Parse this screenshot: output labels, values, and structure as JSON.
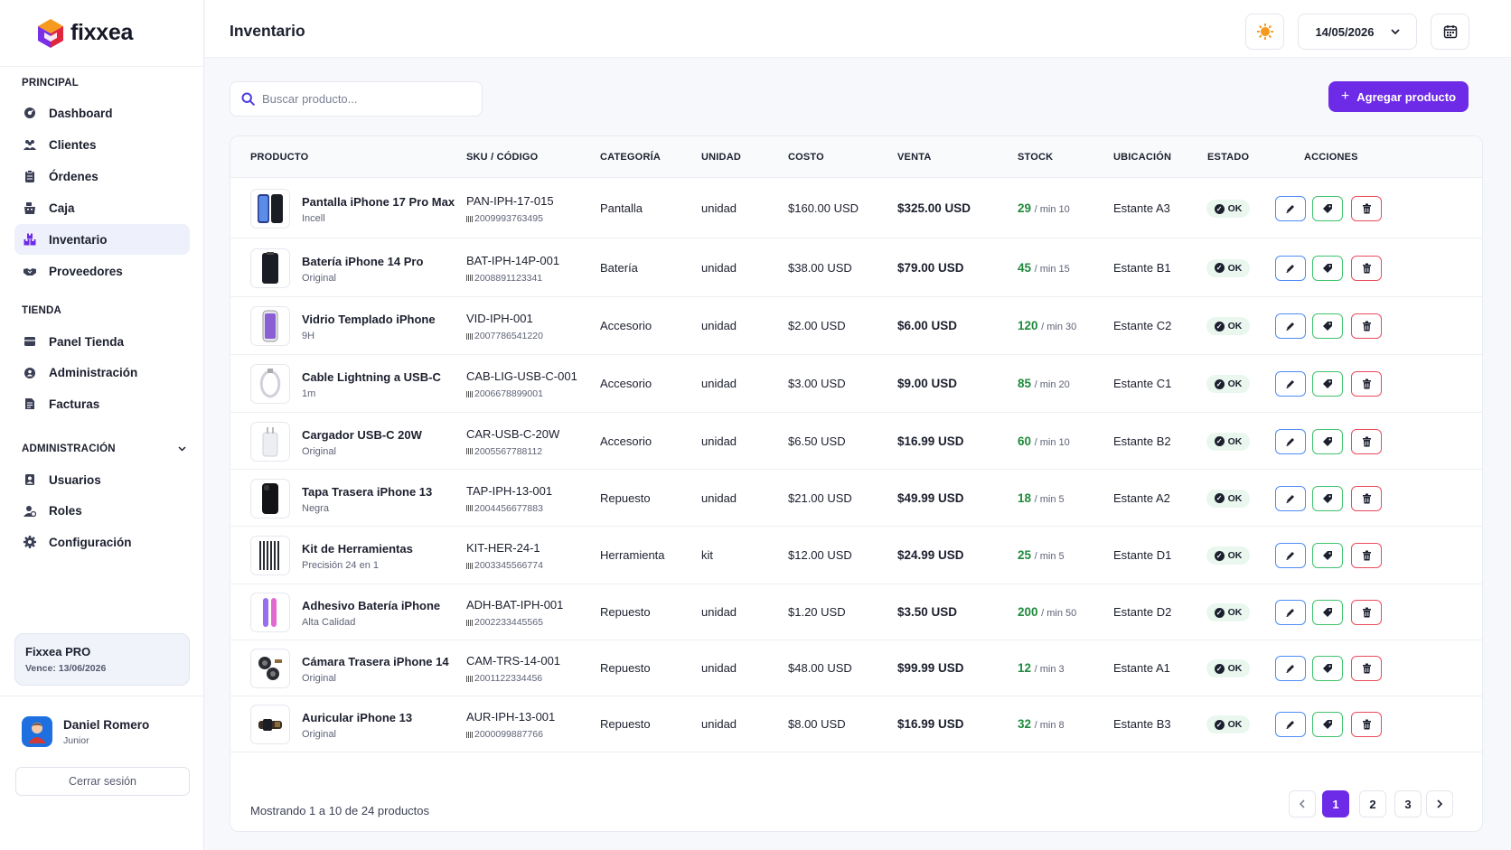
{
  "app": {
    "name": "fixxea"
  },
  "sidebar": {
    "sections": [
      {
        "title": "PRINCIPAL",
        "items": [
          {
            "label": "Dashboard",
            "icon": "dashboard-icon"
          },
          {
            "label": "Clientes",
            "icon": "users-icon"
          },
          {
            "label": "Órdenes",
            "icon": "clipboard-icon"
          },
          {
            "label": "Caja",
            "icon": "cash-register-icon"
          },
          {
            "label": "Inventario",
            "icon": "inventory-icon",
            "active": true
          },
          {
            "label": "Proveedores",
            "icon": "handshake-icon"
          }
        ]
      },
      {
        "title": "TIENDA",
        "items": [
          {
            "label": "Panel Tienda",
            "icon": "store-panel-icon"
          },
          {
            "label": "Administración",
            "icon": "admin-icon"
          },
          {
            "label": "Facturas",
            "icon": "invoice-icon"
          }
        ]
      },
      {
        "title": "ADMINISTRACIÓN",
        "collapsible": true,
        "items": [
          {
            "label": "Usuarios",
            "icon": "user-icon"
          },
          {
            "label": "Roles",
            "icon": "roles-icon"
          },
          {
            "label": "Configuración",
            "icon": "gear-icon"
          }
        ]
      }
    ],
    "plan": {
      "title": "Fixxea PRO",
      "expires": "Vence: 13/06/2026"
    },
    "user": {
      "name": "Daniel Romero",
      "role": "Junior"
    },
    "logout_label": "Cerrar sesión"
  },
  "header": {
    "title": "Inventario",
    "date": "14/05/2026"
  },
  "toolbar": {
    "search_placeholder": "Buscar producto...",
    "add_label": "Agregar producto"
  },
  "table": {
    "columns": [
      "PRODUCTO",
      "SKU / CÓDIGO",
      "CATEGORÍA",
      "UNIDAD",
      "COSTO",
      "VENTA",
      "STOCK",
      "UBICACIÓN",
      "ESTADO",
      "ACCIONES"
    ],
    "rows": [
      {
        "name": "Pantalla iPhone 17 Pro Max",
        "sub": "Incell",
        "sku": "PAN-IPH-17-015",
        "code": "2009993763495",
        "category": "Pantalla",
        "unit": "unidad",
        "cost": "$160.00 USD",
        "price": "$325.00 USD",
        "stock": "29",
        "min": "/ min 10",
        "location": "Estante A3",
        "status": "OK",
        "thumb": "screen"
      },
      {
        "name": "Batería iPhone 14 Pro",
        "sub": "Original",
        "sku": "BAT-IPH-14P-001",
        "code": "2008891123341",
        "category": "Batería",
        "unit": "unidad",
        "cost": "$38.00 USD",
        "price": "$79.00 USD",
        "stock": "45",
        "min": "/ min 15",
        "location": "Estante B1",
        "status": "OK",
        "thumb": "battery"
      },
      {
        "name": "Vidrio Templado iPhone",
        "sub": "9H",
        "sku": "VID-IPH-001",
        "code": "2007786541220",
        "category": "Accesorio",
        "unit": "unidad",
        "cost": "$2.00 USD",
        "price": "$6.00 USD",
        "stock": "120",
        "min": "/ min 30",
        "location": "Estante C2",
        "status": "OK",
        "thumb": "glass"
      },
      {
        "name": "Cable Lightning a USB-C",
        "sub": "1m",
        "sku": "CAB-LIG-USB-C-001",
        "code": "2006678899001",
        "category": "Accesorio",
        "unit": "unidad",
        "cost": "$3.00 USD",
        "price": "$9.00 USD",
        "stock": "85",
        "min": "/ min 20",
        "location": "Estante C1",
        "status": "OK",
        "thumb": "cable"
      },
      {
        "name": "Cargador USB-C 20W",
        "sub": "Original",
        "sku": "CAR-USB-C-20W",
        "code": "2005567788112",
        "category": "Accesorio",
        "unit": "unidad",
        "cost": "$6.50 USD",
        "price": "$16.99 USD",
        "stock": "60",
        "min": "/ min 10",
        "location": "Estante B2",
        "status": "OK",
        "thumb": "charger"
      },
      {
        "name": "Tapa Trasera iPhone 13",
        "sub": "Negra",
        "sku": "TAP-IPH-13-001",
        "code": "2004456677883",
        "category": "Repuesto",
        "unit": "unidad",
        "cost": "$21.00 USD",
        "price": "$49.99 USD",
        "stock": "18",
        "min": "/ min 5",
        "location": "Estante A2",
        "status": "OK",
        "thumb": "back"
      },
      {
        "name": "Kit de Herramientas",
        "sub": "Precisión 24 en 1",
        "sku": "KIT-HER-24-1",
        "code": "2003345566774",
        "category": "Herramienta",
        "unit": "kit",
        "cost": "$12.00 USD",
        "price": "$24.99 USD",
        "stock": "25",
        "min": "/ min 5",
        "location": "Estante D1",
        "status": "OK",
        "thumb": "tools"
      },
      {
        "name": "Adhesivo Batería iPhone",
        "sub": "Alta Calidad",
        "sku": "ADH-BAT-IPH-001",
        "code": "2002233445565",
        "category": "Repuesto",
        "unit": "unidad",
        "cost": "$1.20 USD",
        "price": "$3.50 USD",
        "stock": "200",
        "min": "/ min 50",
        "location": "Estante D2",
        "status": "OK",
        "thumb": "adhesive"
      },
      {
        "name": "Cámara Trasera iPhone 14",
        "sub": "Original",
        "sku": "CAM-TRS-14-001",
        "code": "2001122334456",
        "category": "Repuesto",
        "unit": "unidad",
        "cost": "$48.00 USD",
        "price": "$99.99 USD",
        "stock": "12",
        "min": "/ min 3",
        "location": "Estante A1",
        "status": "OK",
        "thumb": "camera"
      },
      {
        "name": "Auricular iPhone 13",
        "sub": "Original",
        "sku": "AUR-IPH-13-001",
        "code": "2000099887766",
        "category": "Repuesto",
        "unit": "unidad",
        "cost": "$8.00 USD",
        "price": "$16.99 USD",
        "stock": "32",
        "min": "/ min 8",
        "location": "Estante B3",
        "status": "OK",
        "thumb": "earpiece"
      }
    ]
  },
  "footer": {
    "summary": "Mostrando 1 a 10 de 24 productos",
    "pages": [
      "1",
      "2",
      "3"
    ],
    "current_page": "1"
  },
  "colors": {
    "accent": "#6d2be8",
    "success": "#1f8a3c",
    "edit": "#4f8cf5",
    "tag": "#3ec46d",
    "delete": "#ea4b5c"
  }
}
